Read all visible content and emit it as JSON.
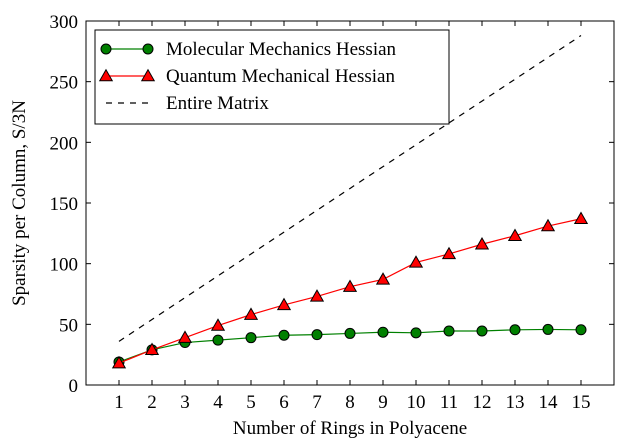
{
  "chart_data": {
    "type": "line",
    "xlabel": "Number of Rings in Polyacene",
    "ylabel": "Sparsity per Column, S/3N",
    "xlim": [
      0,
      16
    ],
    "ylim": [
      0,
      300
    ],
    "xticks": [
      1,
      2,
      3,
      4,
      5,
      6,
      7,
      8,
      9,
      10,
      11,
      12,
      13,
      14,
      15
    ],
    "yticks": [
      0,
      50,
      100,
      150,
      200,
      250,
      300
    ],
    "grid": false,
    "legend_position": "top-left",
    "x": [
      1,
      2,
      3,
      4,
      5,
      6,
      7,
      8,
      9,
      10,
      11,
      12,
      13,
      14,
      15
    ],
    "series": [
      {
        "name": "Molecular Mechanics Hessian",
        "color": "#008000",
        "marker": "circle",
        "line_style": "solid",
        "values": [
          19,
          29,
          35,
          37,
          39,
          41,
          41.5,
          42.5,
          43.5,
          43,
          44.5,
          44.5,
          45.5,
          45.8,
          45.5
        ]
      },
      {
        "name": "Quantum Mechanical Hessian",
        "color": "#ff0000",
        "marker": "triangle",
        "line_style": "solid",
        "values": [
          18,
          29,
          39,
          49,
          58,
          66,
          73,
          81,
          87,
          101,
          108,
          116,
          123,
          131,
          137
        ]
      },
      {
        "name": "Entire Matrix",
        "color": "#000000",
        "marker": "none",
        "line_style": "dashed",
        "values": [
          36,
          54,
          72,
          90,
          108,
          126,
          144,
          162,
          180,
          198,
          216,
          234,
          252,
          270,
          288
        ]
      }
    ]
  }
}
